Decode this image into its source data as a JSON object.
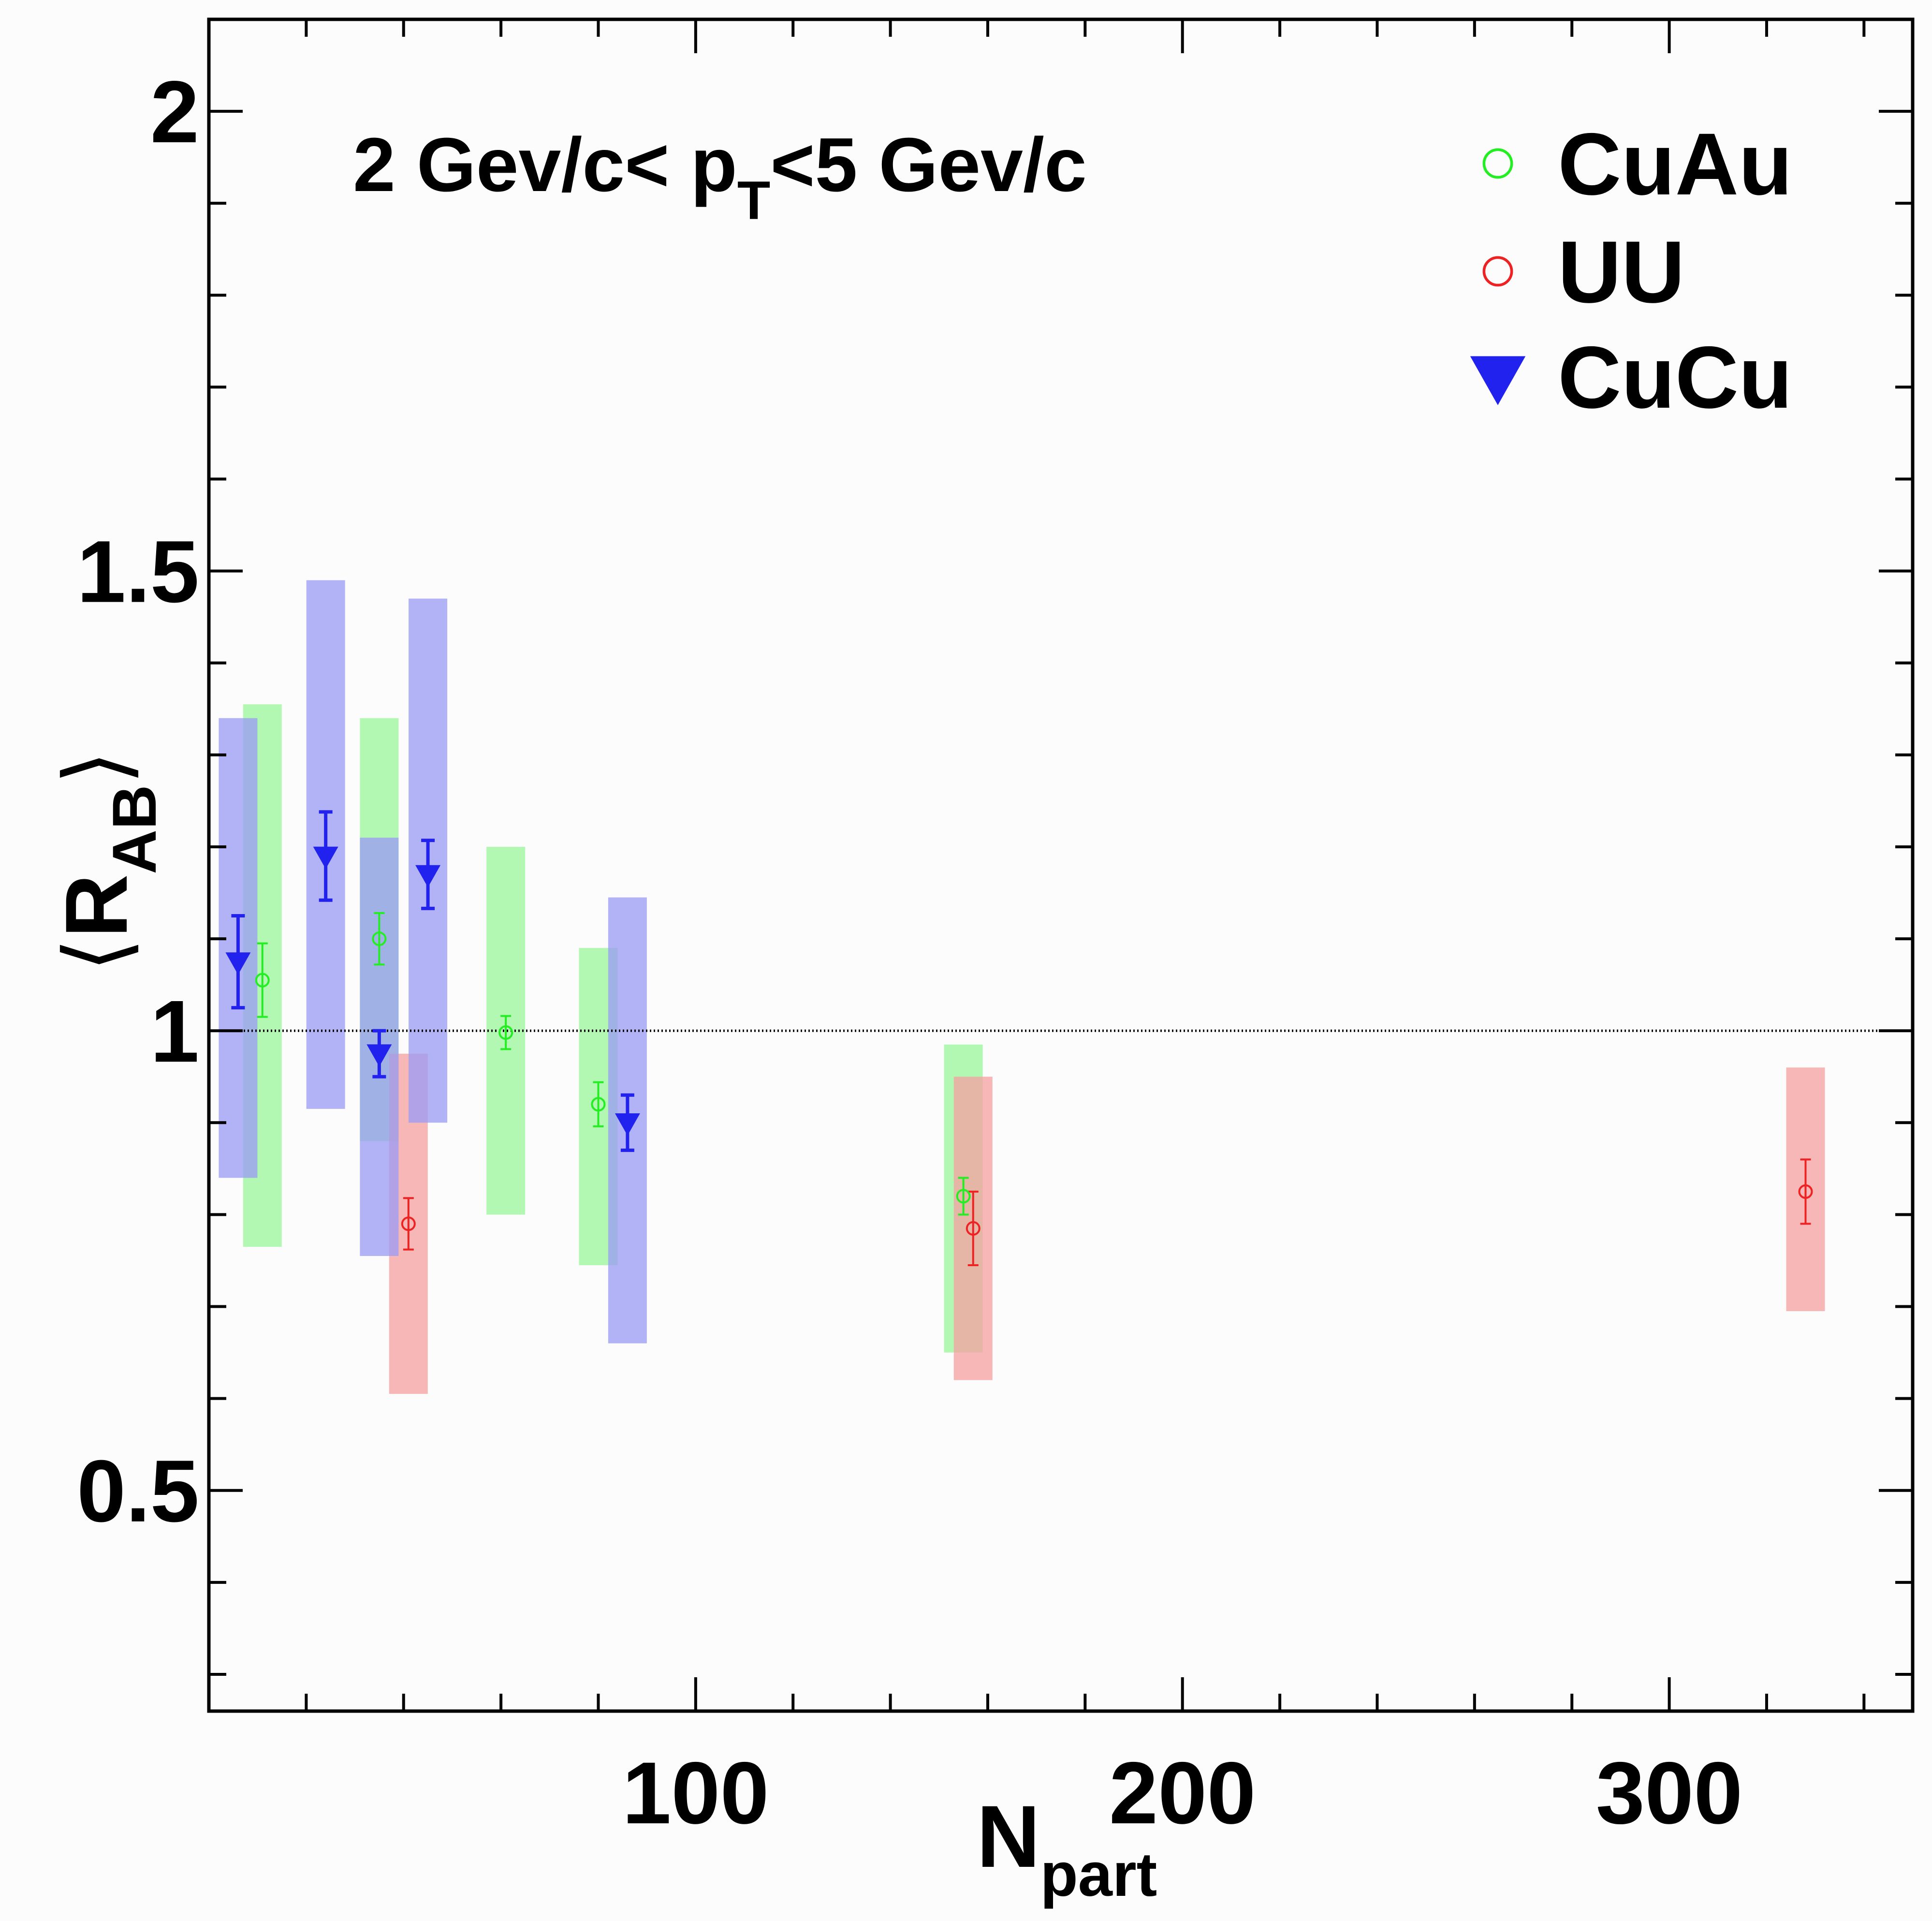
{
  "chart_data": {
    "type": "scatter",
    "annotation": {
      "main": "2 Gev/c< p",
      "sub": "T",
      "tail": "<5 Gev/c"
    },
    "xlabel": {
      "main": "N",
      "sub": "part"
    },
    "ylabel": {
      "left": "⟨",
      "main": "R",
      "sub": "AB",
      "right": "⟩"
    },
    "xlim": [
      0,
      350
    ],
    "ylim": [
      0.26,
      2.1
    ],
    "x_ticks": [
      {
        "value": 100,
        "label": "100"
      },
      {
        "value": 200,
        "label": "200"
      },
      {
        "value": 300,
        "label": "300"
      }
    ],
    "y_ticks": [
      {
        "value": 0.5,
        "label": "0.5"
      },
      {
        "value": 1.0,
        "label": "1"
      },
      {
        "value": 1.5,
        "label": "1.5"
      },
      {
        "value": 2.0,
        "label": "2"
      }
    ],
    "reference_line": 1.0,
    "grid": false,
    "legend_position": "top-right",
    "series": [
      {
        "name": "CuAu",
        "marker": "open-circle",
        "color": "#22ee22",
        "band_color": "#99f599",
        "points": [
          {
            "x": 11,
            "y": 1.055,
            "err": 0.04,
            "sys_lo": 0.765,
            "sys_hi": 1.355
          },
          {
            "x": 35,
            "y": 1.1,
            "err": 0.028,
            "sys_lo": 0.88,
            "sys_hi": 1.34
          },
          {
            "x": 61,
            "y": 0.998,
            "err": 0.018,
            "sys_lo": 0.8,
            "sys_hi": 1.2
          },
          {
            "x": 80,
            "y": 0.92,
            "err": 0.024,
            "sys_lo": 0.745,
            "sys_hi": 1.09
          },
          {
            "x": 155,
            "y": 0.82,
            "err": 0.02,
            "sys_lo": 0.65,
            "sys_hi": 0.985
          }
        ]
      },
      {
        "name": "UU",
        "marker": "open-circle",
        "color": "#ee2222",
        "band_color": "#f5a0a0",
        "points": [
          {
            "x": 41,
            "y": 0.79,
            "err": 0.028,
            "sys_lo": 0.605,
            "sys_hi": 0.975
          },
          {
            "x": 157,
            "y": 0.785,
            "err": 0.04,
            "sys_lo": 0.62,
            "sys_hi": 0.95
          },
          {
            "x": 328,
            "y": 0.825,
            "err": 0.035,
            "sys_lo": 0.695,
            "sys_hi": 0.96
          }
        ]
      },
      {
        "name": "CuCu",
        "marker": "filled-triangle-down",
        "color": "#2222ee",
        "band_color": "#9a9af5",
        "points": [
          {
            "x": 6,
            "y": 1.075,
            "err": 0.05,
            "sys_lo": 0.84,
            "sys_hi": 1.34
          },
          {
            "x": 24,
            "y": 1.19,
            "err": 0.048,
            "sys_lo": 0.915,
            "sys_hi": 1.49
          },
          {
            "x": 35,
            "y": 0.975,
            "err": 0.025,
            "sys_lo": 0.755,
            "sys_hi": 1.21
          },
          {
            "x": 45,
            "y": 1.17,
            "err": 0.037,
            "sys_lo": 0.9,
            "sys_hi": 1.47
          },
          {
            "x": 86,
            "y": 0.9,
            "err": 0.03,
            "sys_lo": 0.66,
            "sys_hi": 1.145
          }
        ]
      }
    ]
  }
}
